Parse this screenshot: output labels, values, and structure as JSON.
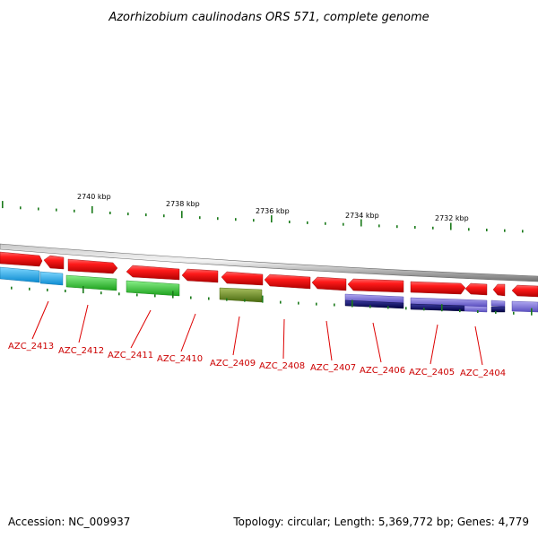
{
  "title": "Azorhizobium caulinodans ORS 571, complete genome",
  "footer": {
    "accession": "Accession: NC_009937",
    "summary": "Topology: circular; Length: 5,369,772 bp; Genes: 4,779"
  },
  "colors": {
    "backbone": "#9a9a9a",
    "forward_gene": "#ee0000",
    "tick": "#1a7a1a",
    "label": "#cc0000",
    "cyan_feature": "#1aa8e8",
    "green_feature": "#2ecc2e",
    "olive_feature": "#6b8c1f",
    "lavender_feature": "#7b6fd6",
    "navy_feature": "#0a0a6a"
  },
  "scale_labels": [
    {
      "kbp": 2740,
      "text": "2740 kbp"
    },
    {
      "kbp": 2738,
      "text": "2738 kbp"
    },
    {
      "kbp": 2736,
      "text": "2736 kbp"
    },
    {
      "kbp": 2734,
      "text": "2734 kbp"
    },
    {
      "kbp": 2732,
      "text": "2732 kbp"
    }
  ],
  "genes": [
    {
      "name": "AZC_2413"
    },
    {
      "name": "AZC_2412"
    },
    {
      "name": "AZC_2411"
    },
    {
      "name": "AZC_2410"
    },
    {
      "name": "AZC_2409"
    },
    {
      "name": "AZC_2408"
    },
    {
      "name": "AZC_2407"
    },
    {
      "name": "AZC_2406"
    },
    {
      "name": "AZC_2405"
    },
    {
      "name": "AZC_2404"
    }
  ]
}
